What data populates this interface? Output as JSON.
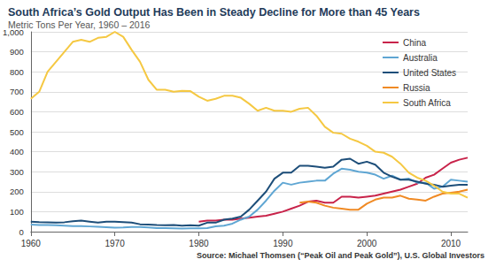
{
  "chart_data": {
    "type": "line",
    "title": "South Africa’s Gold Output Has Been in Steady Decline for More than 45 Years",
    "subtitle": "Metric Tons Per Year, 1960 – 2016",
    "source": "Source: Michael Thomsen (“Peak Oil and Peak Gold”), U.S. Global Investors",
    "x": [
      1960,
      1961,
      1962,
      1963,
      1964,
      1965,
      1966,
      1967,
      1968,
      1969,
      1970,
      1971,
      1972,
      1973,
      1974,
      1975,
      1976,
      1977,
      1978,
      1979,
      1980,
      1981,
      1982,
      1983,
      1984,
      1985,
      1986,
      1987,
      1988,
      1989,
      1990,
      1991,
      1992,
      1993,
      1994,
      1995,
      1996,
      1997,
      1998,
      1999,
      2000,
      2001,
      2002,
      2003,
      2004,
      2005,
      2006,
      2007,
      2008,
      2009,
      2010,
      2011,
      2012
    ],
    "series": [
      {
        "name": "China",
        "color": "#c8234a",
        "values": [
          null,
          null,
          null,
          null,
          null,
          null,
          null,
          null,
          null,
          null,
          null,
          null,
          null,
          null,
          null,
          null,
          null,
          null,
          null,
          null,
          50,
          55,
          55,
          60,
          60,
          65,
          70,
          75,
          80,
          90,
          100,
          115,
          130,
          150,
          155,
          145,
          145,
          175,
          175,
          170,
          175,
          180,
          190,
          200,
          210,
          225,
          240,
          270,
          285,
          315,
          345,
          360,
          370
        ]
      },
      {
        "name": "Australia",
        "color": "#5fa6d3",
        "values": [
          35,
          33,
          33,
          32,
          30,
          28,
          28,
          26,
          24,
          22,
          20,
          21,
          23,
          23,
          21,
          18,
          18,
          17,
          16,
          17,
          17,
          18,
          27,
          30,
          40,
          60,
          75,
          110,
          155,
          205,
          245,
          235,
          245,
          250,
          255,
          255,
          290,
          315,
          310,
          300,
          295,
          285,
          265,
          280,
          260,
          265,
          245,
          245,
          215,
          225,
          260,
          255,
          250
        ]
      },
      {
        "name": "United States",
        "color": "#1d4e79",
        "values": [
          50,
          48,
          47,
          45,
          47,
          52,
          55,
          50,
          45,
          50,
          50,
          48,
          45,
          37,
          35,
          33,
          32,
          33,
          30,
          32,
          30,
          45,
          45,
          60,
          65,
          75,
          110,
          155,
          200,
          265,
          295,
          295,
          330,
          330,
          325,
          320,
          325,
          360,
          365,
          340,
          350,
          335,
          295,
          275,
          260,
          260,
          250,
          240,
          235,
          225,
          230,
          235,
          235
        ]
      },
      {
        "name": "Russia",
        "color": "#f08a24",
        "values": [
          null,
          null,
          null,
          null,
          null,
          null,
          null,
          null,
          null,
          null,
          null,
          null,
          null,
          null,
          null,
          null,
          null,
          null,
          null,
          null,
          null,
          null,
          null,
          null,
          null,
          null,
          null,
          null,
          null,
          null,
          null,
          null,
          145,
          150,
          145,
          130,
          120,
          115,
          110,
          110,
          140,
          160,
          170,
          170,
          180,
          165,
          160,
          155,
          175,
          190,
          195,
          200,
          210
        ]
      },
      {
        "name": "South Africa",
        "color": "#f5c842",
        "values": [
          665,
          700,
          800,
          850,
          900,
          950,
          960,
          950,
          970,
          975,
          1000,
          975,
          910,
          850,
          760,
          710,
          710,
          700,
          705,
          703,
          675,
          655,
          665,
          680,
          680,
          670,
          640,
          605,
          620,
          605,
          605,
          600,
          615,
          620,
          580,
          525,
          495,
          490,
          465,
          450,
          430,
          400,
          395,
          375,
          340,
          295,
          270,
          255,
          230,
          200,
          190,
          190,
          170
        ]
      }
    ],
    "xlim": [
      1960,
      2012
    ],
    "xticks": [
      1960,
      1970,
      1980,
      1990,
      2000,
      2010
    ],
    "ylim": [
      0,
      1000
    ],
    "yticks": [
      0,
      100,
      200,
      300,
      400,
      500,
      600,
      700,
      800,
      900,
      {
        "value": 1000,
        "label": "1,000"
      }
    ],
    "grid": true,
    "legend": "top-right"
  }
}
